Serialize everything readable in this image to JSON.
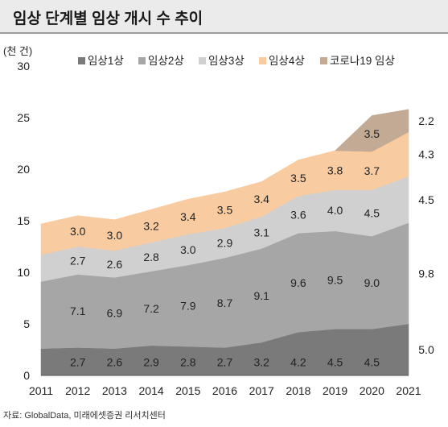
{
  "header": {
    "title": "임상 단계별 임상 개시 수 추이"
  },
  "source": "자료: GlobalData, 미래에셋증권 리서치센터",
  "chart_data": {
    "type": "area",
    "stacked": true,
    "unit_label": "(천 건)",
    "categories": [
      "2011",
      "2012",
      "2013",
      "2014",
      "2015",
      "2016",
      "2017",
      "2018",
      "2019",
      "2020",
      "2021"
    ],
    "ylim": [
      0,
      30
    ],
    "yticks": [
      0,
      5,
      10,
      15,
      20,
      25,
      30
    ],
    "grid": false,
    "legend_position": "top",
    "series": [
      {
        "name": "임상1상",
        "color": "#7a7a7a",
        "values": [
          2.6,
          2.7,
          2.6,
          2.9,
          2.8,
          2.7,
          3.2,
          4.2,
          4.5,
          4.5,
          5.0
        ]
      },
      {
        "name": "임상2상",
        "color": "#a6a6a6",
        "values": [
          6.5,
          7.1,
          6.9,
          7.2,
          7.9,
          8.7,
          9.1,
          9.6,
          9.5,
          9.0,
          9.8
        ]
      },
      {
        "name": "임상3상",
        "color": "#d0d0d0",
        "values": [
          2.6,
          2.7,
          2.6,
          2.8,
          3.0,
          2.9,
          3.1,
          3.6,
          4.0,
          4.5,
          4.5
        ]
      },
      {
        "name": "임상4상",
        "color": "#f8cca0",
        "values": [
          3.0,
          3.0,
          3.0,
          3.2,
          3.4,
          3.5,
          3.4,
          3.5,
          3.8,
          3.7,
          4.3
        ]
      },
      {
        "name": "코로나19 임상",
        "color": "#c2aa94",
        "values": [
          0,
          0,
          0,
          0,
          0,
          0,
          0,
          0,
          0,
          3.5,
          2.2
        ]
      }
    ],
    "data_labels": [
      {
        "series": "임상1상",
        "values": [
          "",
          "2.7",
          "2.6",
          "2.9",
          "2.8",
          "2.7",
          "3.2",
          "4.2",
          "4.5",
          "4.5",
          ""
        ]
      },
      {
        "series": "임상2상",
        "values": [
          "",
          "7.1",
          "6.9",
          "7.2",
          "7.9",
          "8.7",
          "9.1",
          "9.6",
          "9.5",
          "9.0",
          ""
        ]
      },
      {
        "series": "임상3상",
        "values": [
          "",
          "2.7",
          "2.6",
          "2.8",
          "3.0",
          "2.9",
          "3.1",
          "3.6",
          "4.0",
          "4.5",
          ""
        ]
      },
      {
        "series": "임상4상",
        "values": [
          "",
          "3.0",
          "3.0",
          "3.2",
          "3.4",
          "3.5",
          "3.4",
          "3.5",
          "3.8",
          "3.7",
          ""
        ]
      },
      {
        "series": "코로나19 임상",
        "values": [
          "",
          "",
          "",
          "",
          "",
          "",
          "",
          "",
          "",
          "3.5",
          ""
        ]
      }
    ],
    "right_labels": [
      "5.0",
      "9.8",
      "4.5",
      "4.3",
      "2.2"
    ]
  }
}
